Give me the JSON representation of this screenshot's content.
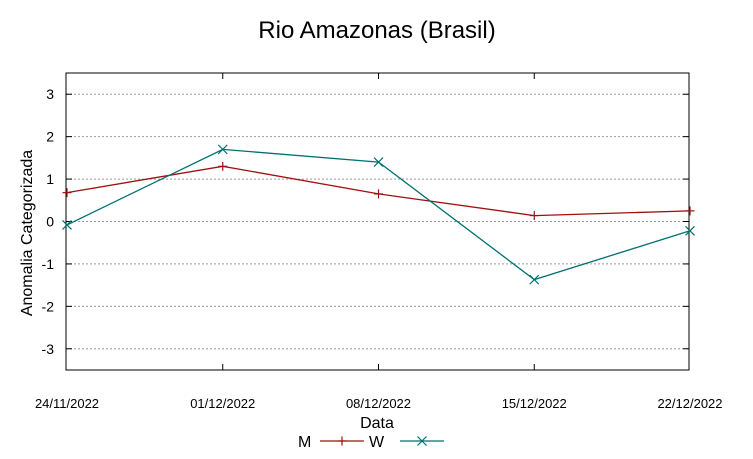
{
  "chart_data": {
    "type": "line",
    "title": "Rio Amazonas (Brasil)",
    "xlabel": "Data",
    "ylabel": "Anomalia Categorizada",
    "categories": [
      "24/11/2022",
      "01/12/2022",
      "08/12/2022",
      "15/12/2022",
      "22/12/2022"
    ],
    "ylim": [
      -3.5,
      3.5
    ],
    "yticks": [
      -3,
      -2,
      -1,
      0,
      1,
      2,
      3
    ],
    "grid": true,
    "legend_position": "bottom",
    "series": [
      {
        "name": "M",
        "color": "#a01010",
        "marker": "plus",
        "values": [
          0.68,
          1.3,
          0.65,
          0.14,
          0.25
        ]
      },
      {
        "name": "W",
        "color": "#007070",
        "marker": "cross",
        "values": [
          -0.08,
          1.7,
          1.4,
          -1.37,
          -0.22
        ]
      }
    ]
  }
}
